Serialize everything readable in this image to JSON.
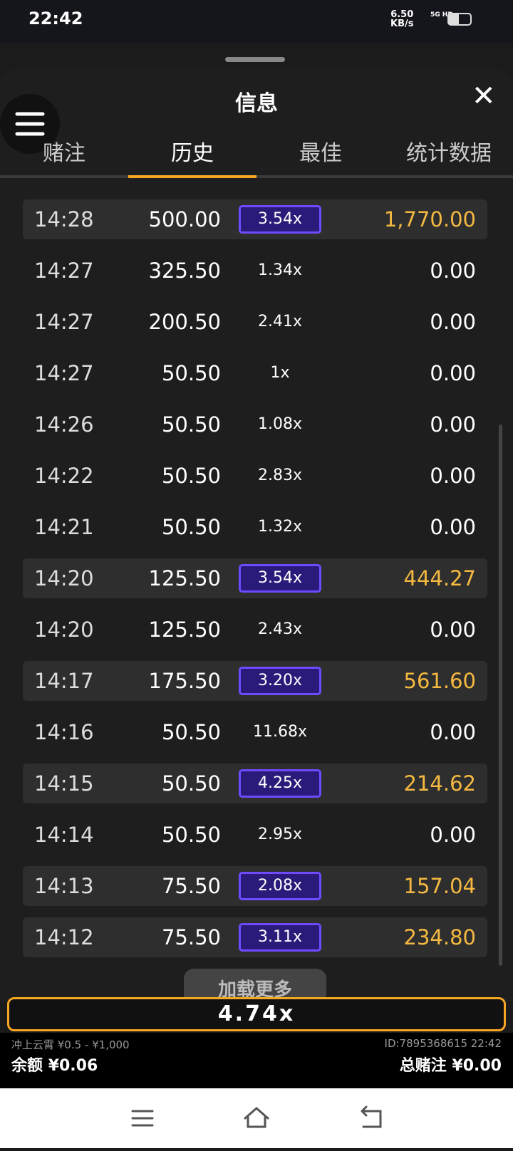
{
  "status_bar": {
    "time": "22:42",
    "speed": "6.50",
    "speed_unit": "KB/s",
    "network": "5G HD"
  },
  "header": {
    "title": "信息"
  },
  "tabs": {
    "items": [
      "赌注",
      "历史",
      "最佳",
      "统计数据"
    ],
    "active": 1
  },
  "table": {
    "rows": [
      [
        "14:28",
        "500.00",
        "3.54x",
        "1,770.00",
        true
      ],
      [
        "14:27",
        "325.50",
        "1.34x",
        "0.00",
        false
      ],
      [
        "14:27",
        "200.50",
        "2.41x",
        "0.00",
        false
      ],
      [
        "14:27",
        "50.50",
        "1x",
        "0.00",
        false
      ],
      [
        "14:26",
        "50.50",
        "1.08x",
        "0.00",
        false
      ],
      [
        "14:22",
        "50.50",
        "2.83x",
        "0.00",
        false
      ],
      [
        "14:21",
        "50.50",
        "1.32x",
        "0.00",
        false
      ],
      [
        "14:20",
        "125.50",
        "3.54x",
        "444.27",
        true
      ],
      [
        "14:20",
        "125.50",
        "2.43x",
        "0.00",
        false
      ],
      [
        "14:17",
        "175.50",
        "3.20x",
        "561.60",
        true
      ],
      [
        "14:16",
        "50.50",
        "11.68x",
        "0.00",
        false
      ],
      [
        "14:15",
        "50.50",
        "4.25x",
        "214.62",
        true
      ],
      [
        "14:14",
        "50.50",
        "2.95x",
        "0.00",
        false
      ],
      [
        "14:13",
        "75.50",
        "2.08x",
        "157.04",
        true
      ],
      [
        "14:12",
        "75.50",
        "3.11x",
        "234.80",
        true
      ]
    ]
  },
  "load_more": "加载更多",
  "banner": {
    "multiplier": "4.74x"
  },
  "footer": {
    "game": "冲上云霄 ¥0.5 - ¥1,000",
    "balance_label": "余额",
    "balance": "¥0.06",
    "id": "ID:7895368615 22:42",
    "total_label": "总赌注",
    "total": "¥0.00"
  }
}
